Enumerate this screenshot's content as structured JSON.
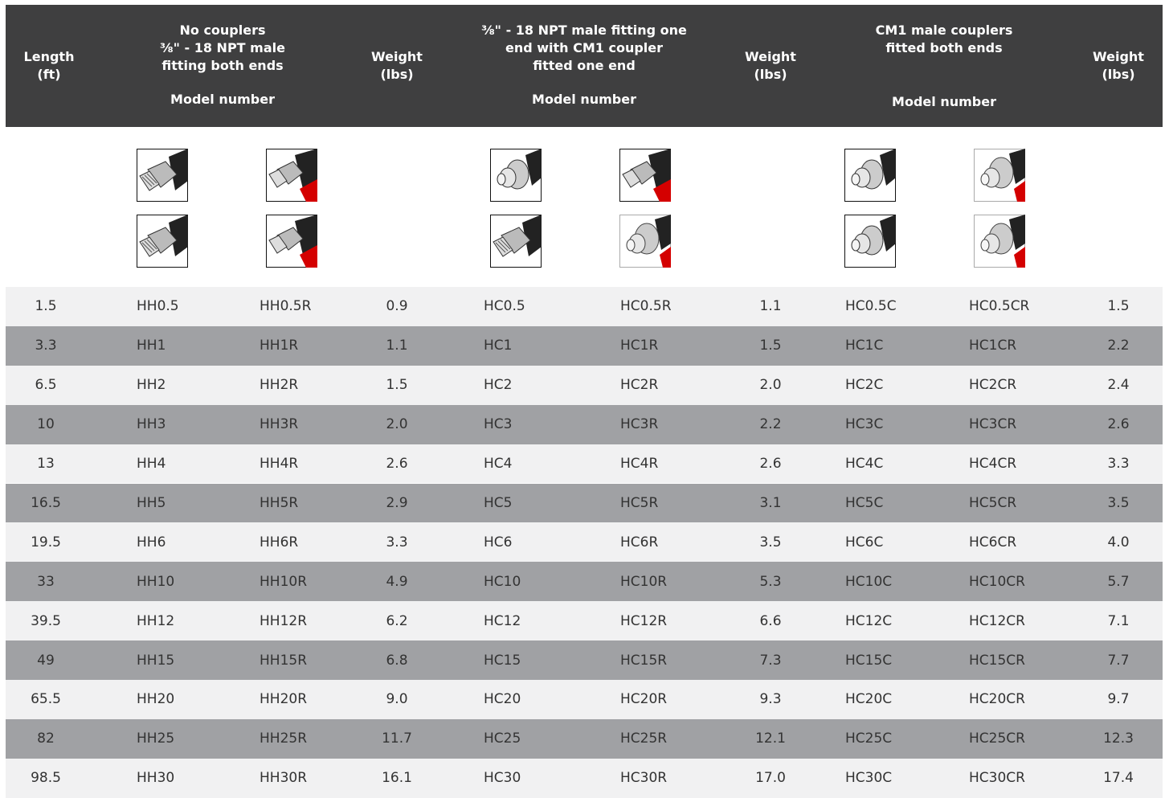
{
  "header": {
    "length": [
      "Length",
      "(ft)"
    ],
    "groups": [
      {
        "title": [
          "No couplers",
          "⅜\" - 18 NPT male",
          "fitting both ends"
        ],
        "subtitle": "Model number"
      },
      {
        "title": [
          "⅜\" - 18 NPT male fitting one",
          "end with CM1 coupler",
          "fitted one end"
        ],
        "subtitle": "Model number"
      },
      {
        "title": [
          "CM1 male couplers",
          "fitted both ends"
        ],
        "subtitle": "Model number"
      }
    ],
    "weight": [
      "Weight",
      "(lbs)"
    ]
  },
  "table": {
    "rows": [
      [
        "1.5",
        "HH0.5",
        "HH0.5R",
        "0.9",
        "HC0.5",
        "HC0.5R",
        "1.1",
        "HC0.5C",
        "HC0.5CR",
        "1.5"
      ],
      [
        "3.3",
        "HH1",
        "HH1R",
        "1.1",
        "HC1",
        "HC1R",
        "1.5",
        "HC1C",
        "HC1CR",
        "2.2"
      ],
      [
        "6.5",
        "HH2",
        "HH2R",
        "1.5",
        "HC2",
        "HC2R",
        "2.0",
        "HC2C",
        "HC2CR",
        "2.4"
      ],
      [
        "10",
        "HH3",
        "HH3R",
        "2.0",
        "HC3",
        "HC3R",
        "2.2",
        "HC3C",
        "HC3CR",
        "2.6"
      ],
      [
        "13",
        "HH4",
        "HH4R",
        "2.6",
        "HC4",
        "HC4R",
        "2.6",
        "HC4C",
        "HC4CR",
        "3.3"
      ],
      [
        "16.5",
        "HH5",
        "HH5R",
        "2.9",
        "HC5",
        "HC5R",
        "3.1",
        "HC5C",
        "HC5CR",
        "3.5"
      ],
      [
        "19.5",
        "HH6",
        "HH6R",
        "3.3",
        "HC6",
        "HC6R",
        "3.5",
        "HC6C",
        "HC6CR",
        "4.0"
      ],
      [
        "33",
        "HH10",
        "HH10R",
        "4.9",
        "HC10",
        "HC10R",
        "5.3",
        "HC10C",
        "HC10CR",
        "5.7"
      ],
      [
        "39.5",
        "HH12",
        "HH12R",
        "6.2",
        "HC12",
        "HC12R",
        "6.6",
        "HC12C",
        "HC12CR",
        "7.1"
      ],
      [
        "49",
        "HH15",
        "HH15R",
        "6.8",
        "HC15",
        "HC15R",
        "7.3",
        "HC15C",
        "HC15CR",
        "7.7"
      ],
      [
        "65.5",
        "HH20",
        "HH20R",
        "9.0",
        "HC20",
        "HC20R",
        "9.3",
        "HC20C",
        "HC20CR",
        "9.7"
      ],
      [
        "82",
        "HH25",
        "HH25R",
        "11.7",
        "HC25",
        "HC25R",
        "12.1",
        "HC25C",
        "HC25CR",
        "12.3"
      ],
      [
        "98.5",
        "HH30",
        "HH30R",
        "16.1",
        "HC30",
        "HC30R",
        "17.0",
        "HC30C",
        "HC30CR",
        "17.4"
      ]
    ]
  }
}
